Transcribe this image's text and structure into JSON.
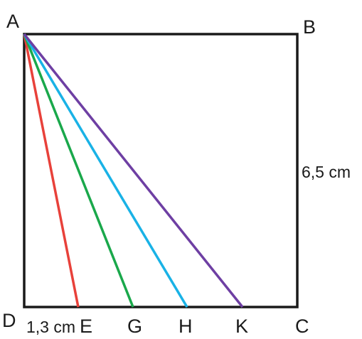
{
  "square": {
    "vertices": [
      "A",
      "B",
      "C",
      "D"
    ],
    "side_label": "6,5 cm"
  },
  "base_points": [
    "E",
    "G",
    "H",
    "K"
  ],
  "segment_de_label": "1,3 cm",
  "segments": [
    {
      "from": "A",
      "to": "E",
      "color": "#e8413a"
    },
    {
      "from": "A",
      "to": "G",
      "color": "#1aa84b"
    },
    {
      "from": "A",
      "to": "H",
      "color": "#19b2e6"
    },
    {
      "from": "A",
      "to": "K",
      "color": "#6e3fa3"
    }
  ],
  "stroke_color": "#1a1a1a"
}
